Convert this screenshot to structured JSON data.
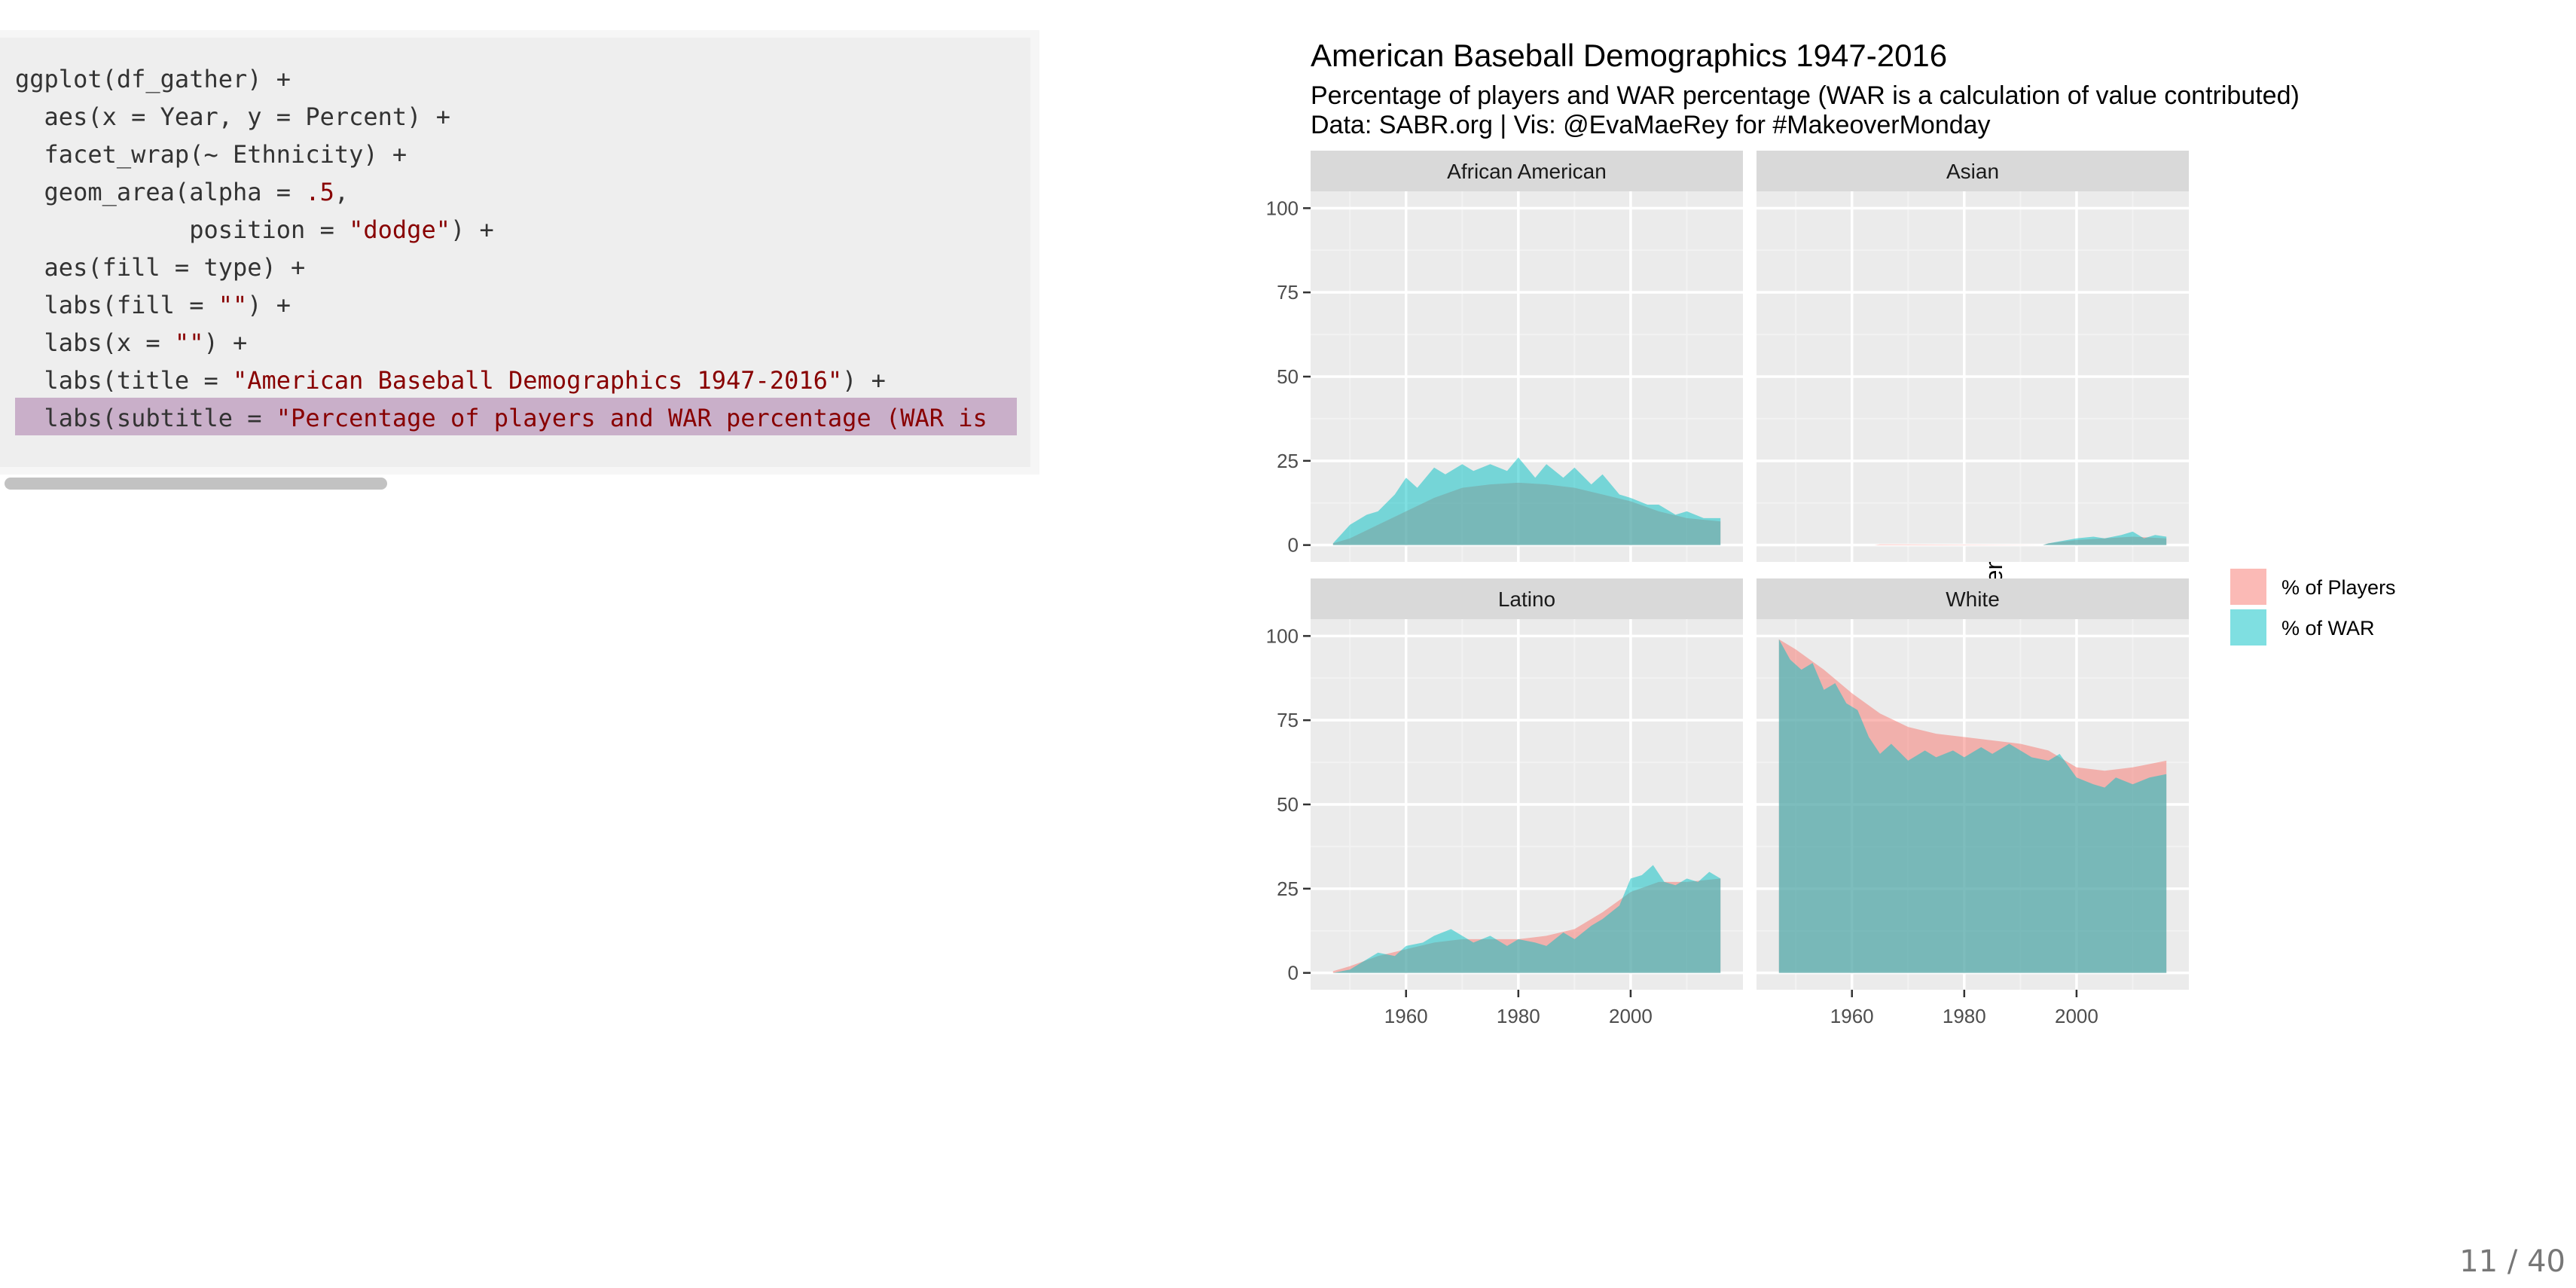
{
  "code": {
    "lines": [
      [
        {
          "t": "ggplot(df_gather) +",
          "c": "plain"
        }
      ],
      [
        {
          "t": "  aes(x = Year, y = Percent) +",
          "c": "plain"
        }
      ],
      [
        {
          "t": "  facet_wrap(~ Ethnicity) +",
          "c": "plain"
        }
      ],
      [
        {
          "t": "  geom_area(alpha = ",
          "c": "plain"
        },
        {
          "t": ".5",
          "c": "num"
        },
        {
          "t": ",",
          "c": "plain"
        }
      ],
      [
        {
          "t": "            position = ",
          "c": "plain"
        },
        {
          "t": "\"dodge\"",
          "c": "str"
        },
        {
          "t": ") +",
          "c": "plain"
        }
      ],
      [
        {
          "t": "  aes(fill = type) +",
          "c": "plain"
        }
      ],
      [
        {
          "t": "  labs(fill = ",
          "c": "plain"
        },
        {
          "t": "\"\"",
          "c": "str"
        },
        {
          "t": ") +",
          "c": "plain"
        }
      ],
      [
        {
          "t": "  labs(x = ",
          "c": "plain"
        },
        {
          "t": "\"\"",
          "c": "str"
        },
        {
          "t": ") +",
          "c": "plain"
        }
      ],
      [
        {
          "t": "  labs(title = ",
          "c": "plain"
        },
        {
          "t": "\"American Baseball Demographics 1947-2016\"",
          "c": "str"
        },
        {
          "t": ") +",
          "c": "plain"
        }
      ],
      [
        {
          "t": "  labs(subtitle = ",
          "c": "plain"
        },
        {
          "t": "\"Percentage of players and WAR percentage (WAR is",
          "c": "str"
        }
      ]
    ],
    "highlighted_line": 9
  },
  "page_number": "11 / 40",
  "chart_data": {
    "type": "area",
    "title": "American Baseball Demographics 1947-2016",
    "subtitle": "Percentage of players and WAR percentage (WAR is a calculation of value contributed)",
    "caption": "Data: SABR.org | Vis: @EvaMaeRey for #MakeoverMonday",
    "xlabel": "",
    "ylabel": "Percent",
    "xlim": [
      1943,
      2020
    ],
    "ylim": [
      -5,
      105
    ],
    "x_ticks": [
      1960,
      1980,
      2000
    ],
    "y_ticks": [
      0,
      25,
      50,
      75,
      100
    ],
    "grid": true,
    "legend_position": "right",
    "colors": {
      "% of Players": "#F8766D",
      "% of WAR": "#00BFC4",
      "panel_bg": "#EBEBEB",
      "strip_bg": "#D9D9D9"
    },
    "alpha": 0.5,
    "series_names": [
      "% of Players",
      "% of WAR"
    ],
    "facets": [
      {
        "label": "African American",
        "series": [
          {
            "name": "% of Players",
            "x": [
              1947,
              1950,
              1955,
              1960,
              1965,
              1970,
              1975,
              1980,
              1985,
              1990,
              1995,
              2000,
              2005,
              2010,
              2016
            ],
            "y": [
              0.5,
              2,
              6,
              10,
              14,
              17,
              18,
              18.5,
              18,
              17,
              15,
              13,
              10,
              8,
              7
            ]
          },
          {
            "name": "% of WAR",
            "x": [
              1947,
              1950,
              1953,
              1955,
              1958,
              1960,
              1962,
              1965,
              1967,
              1970,
              1972,
              1975,
              1978,
              1980,
              1983,
              1985,
              1988,
              1990,
              1993,
              1995,
              1998,
              2000,
              2003,
              2005,
              2008,
              2010,
              2013,
              2016
            ],
            "y": [
              0.5,
              6,
              9,
              10,
              15,
              20,
              17,
              23,
              21,
              24,
              22,
              24,
              22,
              26,
              20,
              24,
              20,
              23,
              18,
              21,
              15,
              14,
              12,
              12,
              9,
              10,
              8,
              8
            ]
          }
        ]
      },
      {
        "label": "Asian",
        "series": [
          {
            "name": "% of Players",
            "x": [
              1947,
              1964,
              1965,
              1994,
              1995,
              2000,
              2005,
              2010,
              2016
            ],
            "y": [
              0,
              0,
              0.2,
              0,
              0.5,
              1.5,
              2,
              2.5,
              2
            ]
          },
          {
            "name": "% of WAR",
            "x": [
              1947,
              1994,
              1995,
              2000,
              2003,
              2005,
              2008,
              2010,
              2012,
              2014,
              2016
            ],
            "y": [
              0,
              0,
              0.5,
              2,
              2.5,
              2,
              3,
              4,
              2,
              3,
              2.5
            ]
          }
        ]
      },
      {
        "label": "Latino",
        "series": [
          {
            "name": "% of Players",
            "x": [
              1947,
              1950,
              1955,
              1960,
              1965,
              1970,
              1975,
              1980,
              1985,
              1990,
              1995,
              2000,
              2005,
              2010,
              2016
            ],
            "y": [
              0.5,
              2,
              5,
              7,
              9,
              10,
              10,
              10,
              11,
              13,
              18,
              24,
              27,
              27,
              28
            ]
          },
          {
            "name": "% of WAR",
            "x": [
              1947,
              1950,
              1953,
              1955,
              1958,
              1960,
              1963,
              1965,
              1968,
              1970,
              1972,
              1975,
              1978,
              1980,
              1983,
              1985,
              1988,
              1990,
              1993,
              1995,
              1998,
              2000,
              2002,
              2004,
              2006,
              2008,
              2010,
              2012,
              2014,
              2016
            ],
            "y": [
              0,
              1,
              4,
              6,
              5,
              8,
              9,
              11,
              13,
              11,
              9,
              11,
              8,
              10,
              9,
              8,
              12,
              10,
              14,
              16,
              20,
              28,
              29,
              32,
              27,
              26,
              28,
              27,
              30,
              28
            ]
          }
        ]
      },
      {
        "label": "White",
        "series": [
          {
            "name": "% of Players",
            "x": [
              1947,
              1950,
              1955,
              1960,
              1965,
              1970,
              1975,
              1980,
              1985,
              1990,
              1995,
              2000,
              2005,
              2010,
              2016
            ],
            "y": [
              99,
              96,
              90,
              83,
              77,
              73,
              71,
              70,
              69,
              68,
              66,
              61,
              60,
              61,
              63
            ]
          },
          {
            "name": "% of WAR",
            "x": [
              1947,
              1949,
              1951,
              1953,
              1955,
              1957,
              1959,
              1961,
              1963,
              1965,
              1967,
              1970,
              1973,
              1975,
              1978,
              1980,
              1983,
              1985,
              1988,
              1990,
              1992,
              1995,
              1997,
              2000,
              2003,
              2005,
              2007,
              2010,
              2013,
              2016
            ],
            "y": [
              99,
              93,
              90,
              92,
              84,
              86,
              80,
              78,
              70,
              65,
              68,
              63,
              66,
              64,
              66,
              64,
              67,
              65,
              68,
              66,
              64,
              63,
              65,
              58,
              56,
              55,
              58,
              56,
              58,
              59
            ]
          }
        ]
      }
    ]
  }
}
